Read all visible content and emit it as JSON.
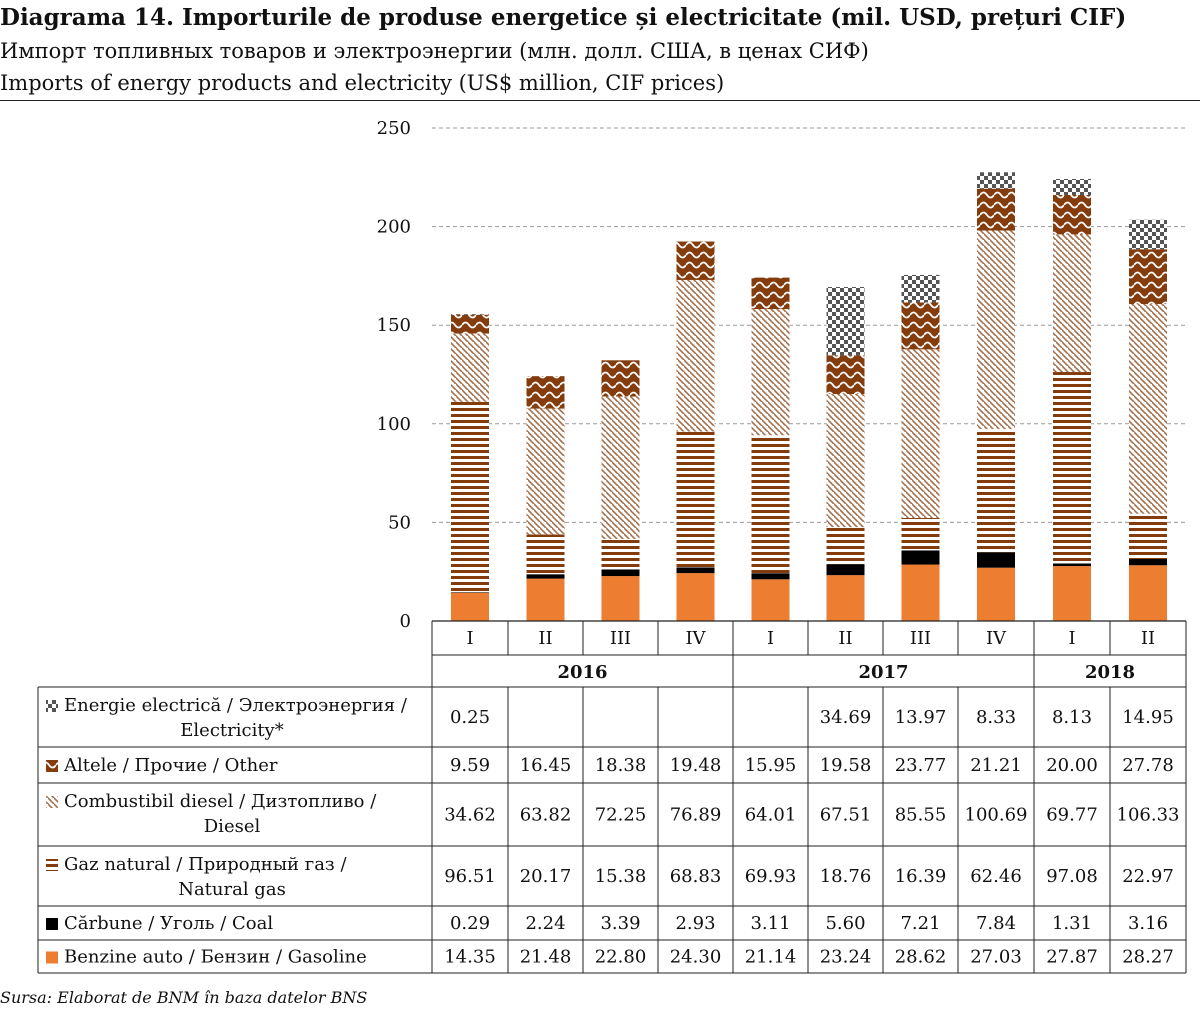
{
  "titles": {
    "ro": "Diagrama 14. Importurile de produse energetice și electricitate (mil. USD, prețuri CIF)",
    "ru": "Импорт топливных товаров и электроэнергии (млн. долл. США, в ценах СИФ)",
    "en": "Imports of energy products and electricity (US$ million, CIF prices)"
  },
  "source": "Sursa: Elaborat de BNM în baza datelor BNS",
  "colors": {
    "gasoline": "#ed7d31",
    "coal": "#000000",
    "gas_stripe": "#843c0c",
    "diesel_stripe": "#a5704b",
    "other_fill": "#843c0c",
    "electricity": "#555555",
    "grid": "#9a9a9a"
  },
  "chart_data": {
    "type": "bar",
    "stacked": true,
    "quarters": [
      "I",
      "II",
      "III",
      "IV",
      "I",
      "II",
      "III",
      "IV",
      "I",
      "II"
    ],
    "years": [
      {
        "label": "2016",
        "quarters": 4
      },
      {
        "label": "2017",
        "quarters": 4
      },
      {
        "label": "2018",
        "quarters": 2
      }
    ],
    "ylim": [
      0,
      250
    ],
    "yticks": [
      "0",
      "50",
      "100",
      "150",
      "200",
      "250"
    ],
    "grid": true,
    "series": [
      {
        "key": "gasoline",
        "name": "Benzine auto / Бензин / Gasoline",
        "pattern": "solid-orange",
        "values": [
          14.35,
          21.48,
          22.8,
          24.3,
          21.14,
          23.24,
          28.62,
          27.03,
          27.87,
          28.27
        ],
        "labels": [
          "14.35",
          "21.48",
          "22.80",
          "24.30",
          "21.14",
          "23.24",
          "28.62",
          "27.03",
          "27.87",
          "28.27"
        ]
      },
      {
        "key": "coal",
        "name": "Cărbune / Уголь / Coal",
        "pattern": "solid-black",
        "values": [
          0.29,
          2.24,
          3.39,
          2.93,
          3.11,
          5.6,
          7.21,
          7.84,
          1.31,
          3.16
        ],
        "labels": [
          "0.29",
          "2.24",
          "3.39",
          "2.93",
          "3.11",
          "5.60",
          "7.21",
          "7.84",
          "1.31",
          "3.16"
        ]
      },
      {
        "key": "gas",
        "name": "Gaz natural / Природный газ / Natural gas",
        "pattern": "horizontal-stripes",
        "values": [
          96.51,
          20.17,
          15.38,
          68.83,
          69.93,
          18.76,
          16.39,
          62.46,
          97.08,
          22.97
        ],
        "labels": [
          "96.51",
          "20.17",
          "15.38",
          "68.83",
          "69.93",
          "18.76",
          "16.39",
          "62.46",
          "97.08",
          "22.97"
        ]
      },
      {
        "key": "diesel",
        "name": "Combustibil diesel / Дизтопливо / Diesel",
        "pattern": "diagonal-hatch",
        "values": [
          34.62,
          63.82,
          72.25,
          76.89,
          64.01,
          67.51,
          85.55,
          100.69,
          69.77,
          106.33
        ],
        "labels": [
          "34.62",
          "63.82",
          "72.25",
          "76.89",
          "64.01",
          "67.51",
          "85.55",
          "100.69",
          "69.77",
          "106.33"
        ]
      },
      {
        "key": "other",
        "name": "Altele / Прочие / Other",
        "pattern": "wave",
        "values": [
          9.59,
          16.45,
          18.38,
          19.48,
          15.95,
          19.58,
          23.77,
          21.21,
          20.0,
          27.78
        ],
        "labels": [
          "9.59",
          "16.45",
          "18.38",
          "19.48",
          "15.95",
          "19.58",
          "23.77",
          "21.21",
          "20.00",
          "27.78"
        ]
      },
      {
        "key": "electricity",
        "name": "Energie electrică / Электроэнергия / Electricity*",
        "pattern": "checker",
        "values": [
          0.25,
          0,
          0,
          0,
          0,
          34.69,
          13.97,
          8.33,
          8.13,
          14.95
        ],
        "labels": [
          "0.25",
          "",
          "",
          "",
          "",
          "34.69",
          "13.97",
          "8.33",
          "8.13",
          "14.95"
        ]
      }
    ],
    "table_rows": [
      {
        "key": "electricity",
        "lines": [
          "Energie electrică / Электроэнергия /",
          "Electricity*"
        ]
      },
      {
        "key": "other",
        "lines": [
          "Altele / Прочие / Other"
        ]
      },
      {
        "key": "diesel",
        "lines": [
          "Combustibil diesel / Дизтопливо /",
          "Diesel"
        ]
      },
      {
        "key": "gas",
        "lines": [
          "Gaz natural / Природный газ /",
          "Natural gas"
        ]
      },
      {
        "key": "coal",
        "lines": [
          "Cărbune / Уголь / Coal"
        ]
      },
      {
        "key": "gasoline",
        "lines": [
          "Benzine auto / Бензин / Gasoline"
        ]
      }
    ]
  }
}
